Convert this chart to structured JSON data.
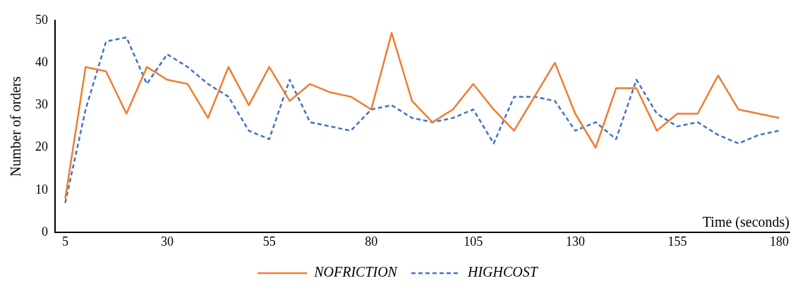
{
  "chart_data": {
    "type": "line",
    "xlabel": "Time (seconds)",
    "ylabel": "Number of orders",
    "x": [
      5,
      10,
      15,
      20,
      25,
      30,
      35,
      40,
      45,
      50,
      55,
      60,
      65,
      70,
      75,
      80,
      85,
      90,
      95,
      100,
      105,
      110,
      115,
      120,
      125,
      130,
      135,
      140,
      145,
      150,
      155,
      160,
      165,
      170,
      175,
      180
    ],
    "series": [
      {
        "name": "NOFRICTION",
        "color": "#ed7d31",
        "line_style": "solid",
        "values": [
          8,
          39,
          38,
          28,
          39,
          36,
          35,
          27,
          39,
          30,
          39,
          31,
          35,
          33,
          32,
          29,
          47,
          31,
          26,
          29,
          35,
          29,
          24,
          32,
          40,
          28,
          20,
          34,
          34,
          24,
          28,
          28,
          37,
          29,
          28,
          27
        ]
      },
      {
        "name": "HIGHCOST",
        "color": "#4472c4",
        "line_style": "dashed",
        "values": [
          7,
          29,
          45,
          46,
          35,
          42,
          39,
          35,
          32,
          24,
          22,
          36,
          26,
          25,
          24,
          29,
          30,
          27,
          26,
          27,
          29,
          21,
          32,
          32,
          31,
          24,
          26,
          22,
          36,
          28,
          25,
          26,
          23,
          21,
          23,
          24
        ]
      }
    ],
    "xlim": [
      2.5,
      182.5
    ],
    "xticks": [
      5,
      30,
      55,
      80,
      105,
      130,
      155,
      180
    ],
    "ylim": [
      0,
      50
    ],
    "yticks": [
      0,
      10,
      20,
      30,
      40,
      50
    ],
    "grid": false,
    "legend": "bottom",
    "marker": "none"
  }
}
